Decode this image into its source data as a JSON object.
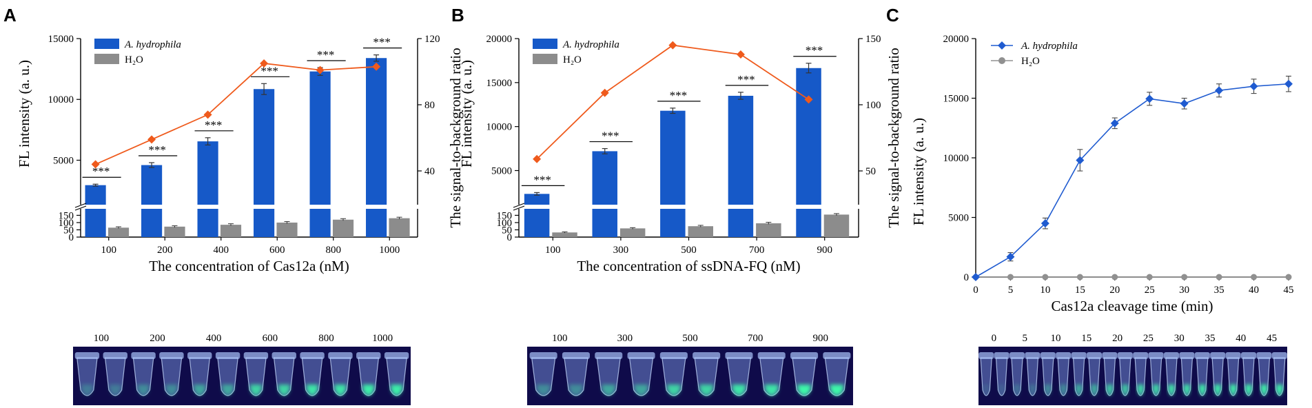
{
  "colors": {
    "bar_primary": "#1659c8",
    "bar_control": "#8c8c8c",
    "ratio_line": "#ef5a1c",
    "line_primary": "#1f5bd0",
    "line_control": "#909090",
    "tube_bg": "#0f0b4a"
  },
  "chart_data": [
    {
      "panel": "A",
      "type": "bar",
      "categories": [
        "100",
        "200",
        "400",
        "600",
        "800",
        "1000"
      ],
      "series": [
        {
          "name": "A. hydrophila",
          "values": [
            2950,
            4600,
            6550,
            10850,
            12300,
            13400
          ],
          "errors": [
            80,
            200,
            300,
            450,
            320,
            260
          ]
        },
        {
          "name": "H₂O",
          "values": [
            65,
            72,
            85,
            100,
            120,
            130
          ],
          "errors": [
            6,
            6,
            7,
            7,
            7,
            7
          ]
        }
      ],
      "ratio_series": {
        "name": "signal-to-background ratio",
        "values": [
          44,
          59,
          74,
          105,
          101,
          103
        ]
      },
      "xlabel": "The concentration of Cas12a (nM)",
      "ylabel": "FL intensity (a. u.)",
      "y2label": "The signal-to-background ratio",
      "y_upper_range": [
        1400,
        15000
      ],
      "y_upper_ticks": [
        "5000",
        "10000",
        "15000"
      ],
      "y_lower_range": [
        0,
        190
      ],
      "y_lower_ticks": [
        "0",
        "50",
        "100",
        "150"
      ],
      "y2_range": [
        0,
        120
      ],
      "y2_ticks": [
        "40",
        "80",
        "120"
      ],
      "significance": "***",
      "tube_labels": [
        "100",
        "200",
        "400",
        "600",
        "800",
        "1000"
      ],
      "tube_glow": [
        0.25,
        0.35,
        0.5,
        0.75,
        0.85,
        0.9
      ]
    },
    {
      "panel": "B",
      "type": "bar",
      "categories": [
        "100",
        "300",
        "500",
        "700",
        "900"
      ],
      "series": [
        {
          "name": "A. hydrophila",
          "values": [
            2350,
            7200,
            11800,
            13500,
            16650
          ],
          "errors": [
            150,
            300,
            300,
            400,
            550
          ]
        },
        {
          "name": "H₂O",
          "values": [
            32,
            60,
            75,
            95,
            155
          ],
          "errors": [
            4,
            5,
            6,
            7,
            7
          ]
        }
      ],
      "ratio_series": {
        "name": "signal-to-background ratio",
        "values": [
          59,
          109,
          145,
          138,
          104
        ]
      },
      "xlabel": "The concentration of ssDNA-FQ (nM)",
      "ylabel": "FL intensity (a. u.)",
      "y2label": "The signal-to-background ratio",
      "y_upper_range": [
        1200,
        20000
      ],
      "y_upper_ticks": [
        "5000",
        "10000",
        "15000",
        "20000"
      ],
      "y_lower_range": [
        0,
        190
      ],
      "y_lower_ticks": [
        "0",
        "50",
        "100",
        "150"
      ],
      "y2_range": [
        0,
        150
      ],
      "y2_ticks": [
        "50",
        "100",
        "150"
      ],
      "significance": "***",
      "tube_labels": [
        "100",
        "300",
        "500",
        "700",
        "900"
      ],
      "tube_glow": [
        0.35,
        0.5,
        0.75,
        0.85,
        0.95
      ]
    },
    {
      "panel": "C",
      "type": "line",
      "x": [
        0,
        5,
        10,
        15,
        20,
        25,
        30,
        35,
        40,
        45
      ],
      "series": [
        {
          "name": "A. hydrophila",
          "values": [
            0,
            1700,
            4500,
            9800,
            12900,
            14950,
            14550,
            15650,
            16000,
            16200
          ],
          "errors": [
            0,
            350,
            450,
            900,
            450,
            550,
            450,
            550,
            600,
            650
          ]
        },
        {
          "name": "H₂O",
          "values": [
            0,
            0,
            0,
            0,
            0,
            0,
            0,
            0,
            0,
            0
          ],
          "errors": [
            0,
            0,
            0,
            0,
            0,
            0,
            0,
            0,
            0,
            0
          ]
        }
      ],
      "xlabel": "Cas12a cleavage time (min)",
      "ylabel": "FL intensity (a. u.)",
      "xlim": [
        0,
        45
      ],
      "ylim": [
        0,
        20000
      ],
      "x_ticks": [
        "0",
        "5",
        "10",
        "15",
        "20",
        "25",
        "30",
        "35",
        "40",
        "45"
      ],
      "y_ticks": [
        "0",
        "5000",
        "10000",
        "15000",
        "20000"
      ],
      "tube_labels": [
        "0",
        "5",
        "10",
        "15",
        "20",
        "25",
        "30",
        "35",
        "40",
        "45"
      ],
      "tube_glow": [
        0.1,
        0.2,
        0.35,
        0.55,
        0.7,
        0.8,
        0.85,
        0.9,
        0.92,
        0.95
      ]
    }
  ]
}
